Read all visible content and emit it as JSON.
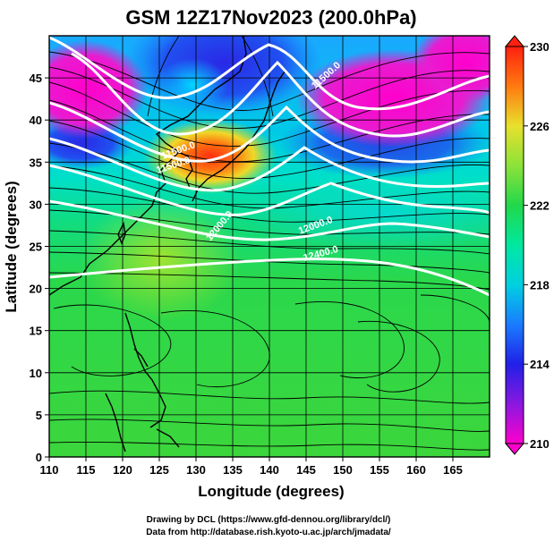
{
  "title": "GSM 12Z17Nov2023 (200.0hPa)",
  "xlabel": "Longitude (degrees)",
  "ylabel": "Latitude (degrees)",
  "colorbar": {
    "min": 210,
    "max": 230,
    "ticks": [
      "230",
      "226",
      "222",
      "218",
      "214",
      "210"
    ],
    "colors": {
      "t210": "#ff00cc",
      "t212": "#8a18e0",
      "t214": "#2020e8",
      "t216": "#1a7cff",
      "t218": "#00d0e0",
      "t220": "#00e8a0",
      "t222": "#22d84a",
      "t224": "#8ce23a",
      "t226": "#e8e02c",
      "t228": "#ff7a10",
      "t230": "#ff2010"
    }
  },
  "credits": {
    "line1": "Drawing by DCL (https://www.gfd-dennou.org/library/dcl/)",
    "line2": "Data from http://database.rish.kyoto-u.ac.jp/arch/jmadata/"
  },
  "contour_labels": [
    "11500.0",
    "11500.0",
    "11500.0",
    "12000.0",
    "12000.0",
    "12400.0"
  ],
  "chart_data": {
    "type": "heatmap",
    "title": "GSM 12Z17Nov2023 (200.0hPa)",
    "xlabel": "Longitude (degrees)",
    "ylabel": "Latitude (degrees)",
    "xlim": [
      110,
      170
    ],
    "ylim": [
      0,
      50
    ],
    "xticks": [
      110,
      115,
      120,
      125,
      130,
      135,
      140,
      145,
      150,
      155,
      160,
      165
    ],
    "yticks": [
      0,
      5,
      10,
      15,
      20,
      25,
      30,
      35,
      40,
      45
    ],
    "color_range": [
      210,
      230
    ],
    "grid": true,
    "contours": [
      {
        "label": "11500.0",
        "lon": 150.5,
        "lat": 46.0
      },
      {
        "label": "11500.0",
        "lon": 126.5,
        "lat": 38.0
      },
      {
        "label": "11500.0",
        "lon": 126.0,
        "lat": 36.5
      },
      {
        "label": "12000.0",
        "lon": 128.5,
        "lat": 29.5
      },
      {
        "label": "12000.0",
        "lon": 147.5,
        "lat": 30.5
      },
      {
        "label": "12400.0",
        "lon": 147.5,
        "lat": 26.5
      }
    ]
  }
}
